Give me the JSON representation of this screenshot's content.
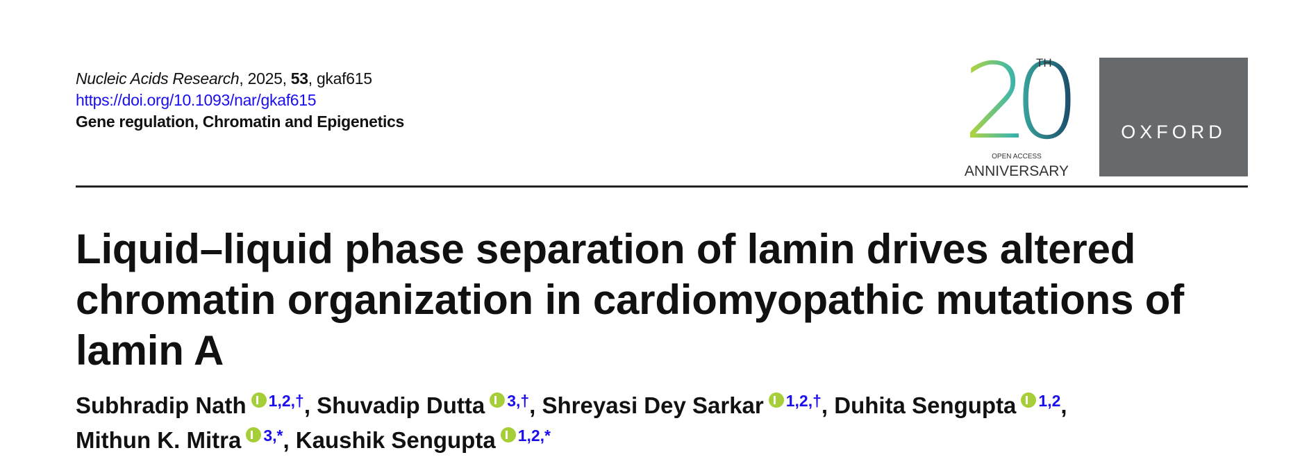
{
  "header": {
    "citation": {
      "journal": "Nucleic Acids Research",
      "year": "2025",
      "volume": "53",
      "article": "gkaf615",
      "separator": ","
    },
    "doi": "https://doi.org/10.1093/nar/gkaf615",
    "section": "Gene regulation, Chromatin and Epigenetics"
  },
  "logos": {
    "anniversary_number": "20",
    "anniversary_suffix": "TH",
    "anniversary_top": "OPEN ACCESS",
    "anniversary_bottom": "ANNIVERSARY",
    "publisher": "OXFORD"
  },
  "article": {
    "title": "Liquid–liquid phase separation of lamin drives altered chromatin organization in cardiomyopathic mutations of lamin A",
    "author_separator": ",",
    "authors": [
      {
        "name": "Subhradip Nath",
        "affiliations": "1,2,†"
      },
      {
        "name": "Shuvadip Dutta",
        "affiliations": "3,†"
      },
      {
        "name": "Shreyasi Dey Sarkar",
        "affiliations": "1,2,†"
      },
      {
        "name": "Duhita Sengupta",
        "affiliations": "1,2"
      },
      {
        "name": "Mithun K. Mitra",
        "affiliations": "3,*"
      },
      {
        "name": "Kaushik Sengupta",
        "affiliations": "1,2,*"
      }
    ]
  }
}
